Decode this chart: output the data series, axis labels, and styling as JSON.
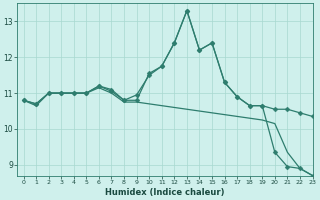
{
  "xlabel": "Humidex (Indice chaleur)",
  "x": [
    0,
    1,
    2,
    3,
    4,
    5,
    6,
    7,
    8,
    9,
    10,
    11,
    12,
    13,
    14,
    15,
    16,
    17,
    18,
    19,
    20,
    21,
    22,
    23
  ],
  "line1_y": [
    10.8,
    10.7,
    11.0,
    11.0,
    11.0,
    11.0,
    11.2,
    11.1,
    10.8,
    10.8,
    11.55,
    11.75,
    12.4,
    13.3,
    12.2,
    12.4,
    11.3,
    10.9,
    10.65,
    10.65,
    10.55,
    10.55,
    10.45,
    10.35
  ],
  "line2_y": [
    10.8,
    10.7,
    11.0,
    11.0,
    11.0,
    11.0,
    11.2,
    11.05,
    10.8,
    10.95,
    11.5,
    11.75,
    12.4,
    13.3,
    12.2,
    12.4,
    11.3,
    10.9,
    10.65,
    10.65,
    9.35,
    8.95,
    8.9,
    8.7
  ],
  "line3_y": [
    10.8,
    10.65,
    11.0,
    11.0,
    11.0,
    11.0,
    11.15,
    11.0,
    10.75,
    10.75,
    10.7,
    10.65,
    10.6,
    10.55,
    10.5,
    10.45,
    10.4,
    10.35,
    10.3,
    10.25,
    10.15,
    9.35,
    8.9,
    8.7
  ],
  "bg_color": "#cff0ec",
  "line_color": "#2e7d6e",
  "grid_color": "#a8d8d0",
  "ylim": [
    8.7,
    13.5
  ],
  "xlim": [
    -0.5,
    23
  ],
  "yticks": [
    9,
    10,
    11,
    12,
    13
  ],
  "xticks": [
    0,
    1,
    2,
    3,
    4,
    5,
    6,
    7,
    8,
    9,
    10,
    11,
    12,
    13,
    14,
    15,
    16,
    17,
    18,
    19,
    20,
    21,
    22,
    23
  ]
}
